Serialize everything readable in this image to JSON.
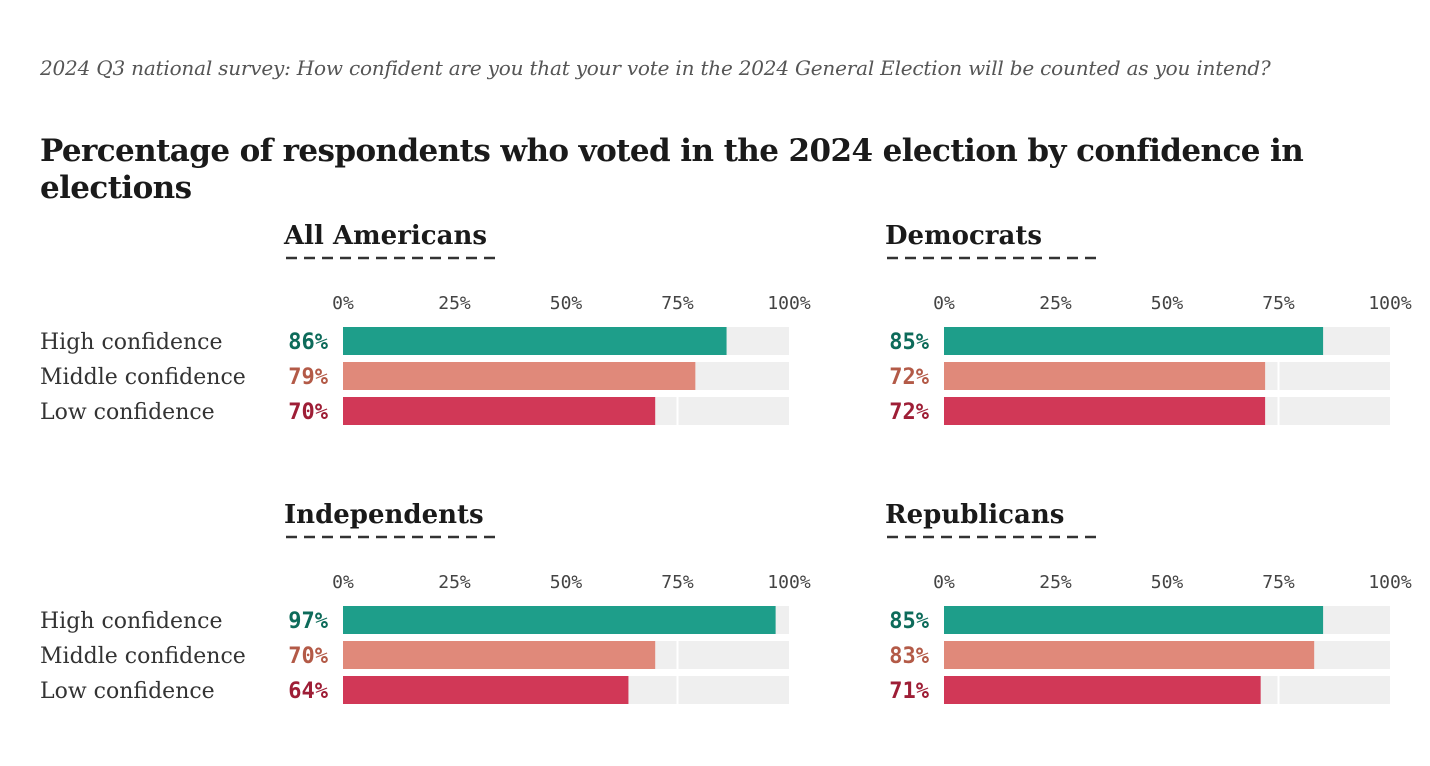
{
  "subtitle": "2024 Q3 national survey: How confident are you that your vote in the 2024 General Election will be counted as you intend?",
  "title": "Percentage of respondents who voted in the 2024 election by confidence in elections",
  "colors": {
    "high": "#1e9e8a",
    "middle": "#e0897a",
    "low": "#d13857",
    "high_text": "#0d6b5a",
    "middle_text": "#b35a47",
    "low_text": "#9e1e36",
    "track": "#efefef"
  },
  "chart_data": [
    {
      "type": "bar",
      "title": "All Americans",
      "categories": [
        "High confidence",
        "Middle confidence",
        "Low confidence"
      ],
      "values": [
        86,
        79,
        70
      ],
      "value_labels": [
        "86%",
        "79%",
        "70%"
      ],
      "ticks": [
        "0%",
        "25%",
        "50%",
        "75%",
        "100%"
      ],
      "xlim": [
        0,
        100
      ]
    },
    {
      "type": "bar",
      "title": "Democrats",
      "categories": [
        "High confidence",
        "Middle confidence",
        "Low confidence"
      ],
      "values": [
        85,
        72,
        72
      ],
      "value_labels": [
        "85%",
        "72%",
        "72%"
      ],
      "ticks": [
        "0%",
        "25%",
        "50%",
        "75%",
        "100%"
      ],
      "xlim": [
        0,
        100
      ]
    },
    {
      "type": "bar",
      "title": "Independents",
      "categories": [
        "High confidence",
        "Middle confidence",
        "Low confidence"
      ],
      "values": [
        97,
        70,
        64
      ],
      "value_labels": [
        "97%",
        "70%",
        "64%"
      ],
      "ticks": [
        "0%",
        "25%",
        "50%",
        "75%",
        "100%"
      ],
      "xlim": [
        0,
        100
      ]
    },
    {
      "type": "bar",
      "title": "Republicans",
      "categories": [
        "High confidence",
        "Middle confidence",
        "Low confidence"
      ],
      "values": [
        85,
        83,
        71
      ],
      "value_labels": [
        "85%",
        "83%",
        "71%"
      ],
      "ticks": [
        "0%",
        "25%",
        "50%",
        "75%",
        "100%"
      ],
      "xlim": [
        0,
        100
      ]
    }
  ]
}
